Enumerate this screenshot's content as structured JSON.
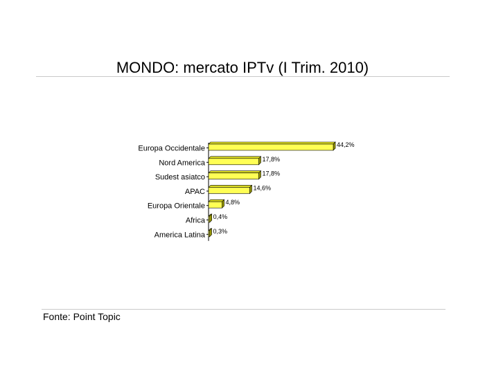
{
  "title": "MONDO: mercato IPTv (I Trim. 2010)",
  "source": "Fonte: Point Topic",
  "colors": {
    "bar_front": "#ffff55",
    "bar_top": "#dddd22",
    "bar_side": "#999900",
    "bar_stroke": "#000000",
    "rule": "#c9c9c9"
  },
  "chart_data": {
    "type": "bar",
    "orientation": "horizontal",
    "style": "3d",
    "categories": [
      "Europa Occidentale",
      "Nord America",
      "Sudest asiatco",
      "APAC",
      "Europa Orientale",
      "Africa",
      "America Latina"
    ],
    "values": [
      44.2,
      17.8,
      17.8,
      14.6,
      4.8,
      0.4,
      0.3
    ],
    "value_labels": [
      "44,2%",
      "17,8%",
      "17,8%",
      "14,6%",
      "4,8%",
      "0,4%",
      "0,3%"
    ],
    "unit": "%",
    "xlim": [
      0,
      44.2
    ],
    "grid": false,
    "legend": "none"
  }
}
